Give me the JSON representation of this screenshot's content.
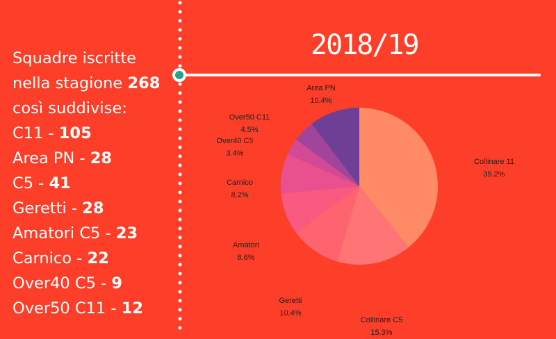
{
  "season": "2018/19",
  "intro": {
    "line1": "Squadre iscritte",
    "line2_text": "nella stagione ",
    "total": "268",
    "line3": "così suddivise:"
  },
  "stats": [
    {
      "label": "C11",
      "value": "105"
    },
    {
      "label": "Area PN",
      "value": "28"
    },
    {
      "label": "C5",
      "value": "41"
    },
    {
      "label": "Geretti",
      "value": "28"
    },
    {
      "label": "Amatori C5",
      "value": "23"
    },
    {
      "label": "Carnico",
      "value": "22"
    },
    {
      "label": "Over40 C5",
      "value": "9"
    },
    {
      "label": "Over50 C11",
      "value": "12"
    }
  ],
  "colors": {
    "background": "#fd3e28",
    "node": "#22a38c",
    "line": "#ffffff"
  },
  "chart_data": {
    "type": "pie",
    "categories": [
      "Collinare 11",
      "Collinare C5",
      "Geretti",
      "Amatori",
      "Carnico",
      "Over40 C5",
      "Over50 C11",
      "Area PN"
    ],
    "values": [
      39.2,
      15.3,
      10.4,
      8.6,
      8.2,
      3.4,
      4.5,
      10.4
    ],
    "value_labels": [
      "39.2%",
      "15.3%",
      "10.4%",
      "8.6%",
      "8.2%",
      "3.4%",
      "4.5%",
      "10.4%"
    ],
    "colors": [
      "#ff8a66",
      "#ff7575",
      "#fe6470",
      "#f95a80",
      "#e8508e",
      "#d24a96",
      "#a2449a",
      "#6f3f96"
    ],
    "title": ""
  }
}
